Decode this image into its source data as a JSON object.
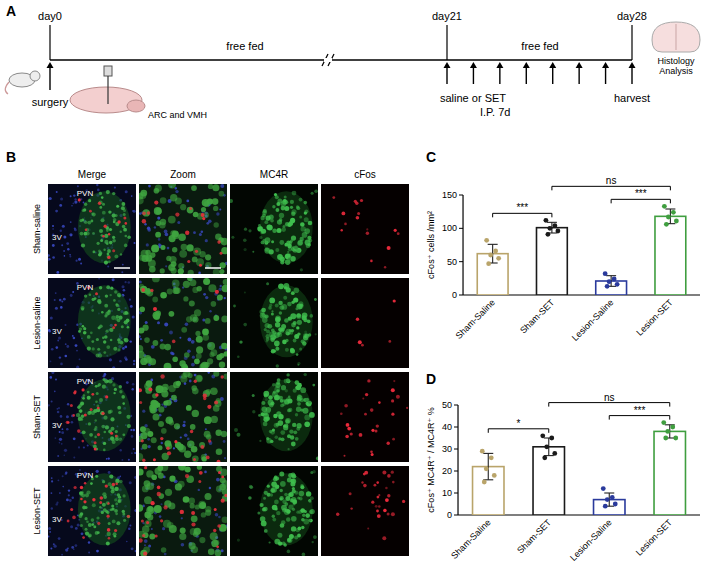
{
  "panel_labels": [
    "A",
    "B",
    "C",
    "D"
  ],
  "timeline": {
    "days": [
      "day0",
      "day21",
      "day28"
    ],
    "phases": [
      "free fed",
      "free fed"
    ],
    "surgery": "surgery",
    "site": "ARC and VMH",
    "treatment": "saline or SET",
    "route": "I.P. 7d",
    "harvest": "harvest",
    "analysis": "Histology Analysis"
  },
  "micrographs": {
    "columns": [
      "Merge",
      "Zoom",
      "MC4R",
      "cFos"
    ],
    "rows": [
      "Sham-saline",
      "Lesion-saline",
      "Sham-SET",
      "Lesion-SET"
    ],
    "region_labels": [
      "PVN",
      "3V"
    ]
  },
  "chart_data": [
    {
      "type": "bar",
      "y_label": "cFos⁺ cells /mm²",
      "categories": [
        "Sham-Saline",
        "Sham-SET",
        "Lesion-Saline",
        "Lesion-SET"
      ],
      "values": [
        62,
        101,
        21,
        118
      ],
      "error": [
        14,
        8,
        8,
        11
      ],
      "points": [
        [
          82,
          66,
          60,
          55,
          47
        ],
        [
          112,
          104,
          100,
          96,
          91
        ],
        [
          32,
          24,
          20,
          16,
          13
        ],
        [
          133,
          124,
          117,
          111,
          106
        ]
      ],
      "colors": [
        "#b9a46a",
        "#1a1a1a",
        "#2a3a9c",
        "#3f9e3f"
      ],
      "ylim": [
        0,
        150
      ],
      "yticks": [
        0,
        50,
        100,
        150
      ],
      "grid": false,
      "annotations": [
        {
          "text": "***",
          "from": 0,
          "to": 1
        },
        {
          "text": "***",
          "from": 2,
          "to": 3
        },
        {
          "text": "ns",
          "from": 1,
          "to": 3
        }
      ]
    },
    {
      "type": "bar",
      "y_label": "cFos⁺ MC4R⁺ / MC4R⁺ %",
      "categories": [
        "Sham-Saline",
        "Sham-SET",
        "Lesion-Saline",
        "Lesion-SET"
      ],
      "values": [
        22,
        31,
        7,
        38
      ],
      "error": [
        6,
        4,
        3,
        3
      ],
      "points": [
        [
          29,
          26,
          21,
          18,
          15
        ],
        [
          36,
          35,
          31,
          28,
          26
        ],
        [
          12,
          8,
          7,
          5,
          4
        ],
        [
          42,
          40,
          38,
          35,
          35
        ]
      ],
      "colors": [
        "#b9a46a",
        "#1a1a1a",
        "#2a3a9c",
        "#3f9e3f"
      ],
      "ylim": [
        0,
        50
      ],
      "yticks": [
        0,
        10,
        20,
        30,
        40,
        50
      ],
      "grid": false,
      "annotations": [
        {
          "text": "*",
          "from": 0,
          "to": 1
        },
        {
          "text": "***",
          "from": 2,
          "to": 3
        },
        {
          "text": "ns",
          "from": 1,
          "to": 3
        }
      ]
    }
  ]
}
